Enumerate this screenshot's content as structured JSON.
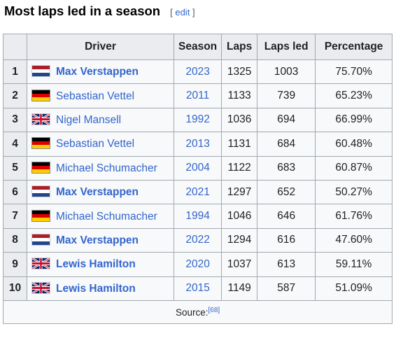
{
  "section": {
    "title": "Most laps led in a season",
    "edit_open": "[",
    "edit_label": "edit",
    "edit_close": "]"
  },
  "table": {
    "headers": {
      "driver": "Driver",
      "season": "Season",
      "laps": "Laps",
      "laps_led": "Laps led",
      "percentage": "Percentage"
    },
    "rows": [
      {
        "rank": "1",
        "flag": "nl",
        "driver": "Max Verstappen",
        "bold": true,
        "season": "2023",
        "laps": "1325",
        "laps_led": "1003",
        "percentage": "75.70%"
      },
      {
        "rank": "2",
        "flag": "de",
        "driver": "Sebastian Vettel",
        "bold": false,
        "season": "2011",
        "laps": "1133",
        "laps_led": "739",
        "percentage": "65.23%"
      },
      {
        "rank": "3",
        "flag": "gb",
        "driver": "Nigel Mansell",
        "bold": false,
        "season": "1992",
        "laps": "1036",
        "laps_led": "694",
        "percentage": "66.99%"
      },
      {
        "rank": "4",
        "flag": "de",
        "driver": "Sebastian Vettel",
        "bold": false,
        "season": "2013",
        "laps": "1131",
        "laps_led": "684",
        "percentage": "60.48%"
      },
      {
        "rank": "5",
        "flag": "de",
        "driver": "Michael Schumacher",
        "bold": false,
        "season": "2004",
        "laps": "1122",
        "laps_led": "683",
        "percentage": "60.87%"
      },
      {
        "rank": "6",
        "flag": "nl",
        "driver": "Max Verstappen",
        "bold": true,
        "season": "2021",
        "laps": "1297",
        "laps_led": "652",
        "percentage": "50.27%"
      },
      {
        "rank": "7",
        "flag": "de",
        "driver": "Michael Schumacher",
        "bold": false,
        "season": "1994",
        "laps": "1046",
        "laps_led": "646",
        "percentage": "61.76%"
      },
      {
        "rank": "8",
        "flag": "nl",
        "driver": "Max Verstappen",
        "bold": true,
        "season": "2022",
        "laps": "1294",
        "laps_led": "616",
        "percentage": "47.60%"
      },
      {
        "rank": "9",
        "flag": "gb",
        "driver": "Lewis Hamilton",
        "bold": true,
        "season": "2020",
        "laps": "1037",
        "laps_led": "613",
        "percentage": "59.11%"
      },
      {
        "rank": "10",
        "flag": "gb",
        "driver": "Lewis Hamilton",
        "bold": true,
        "season": "2015",
        "laps": "1149",
        "laps_led": "587",
        "percentage": "51.09%"
      }
    ],
    "source_label": "Source:",
    "source_ref": "[68]"
  }
}
